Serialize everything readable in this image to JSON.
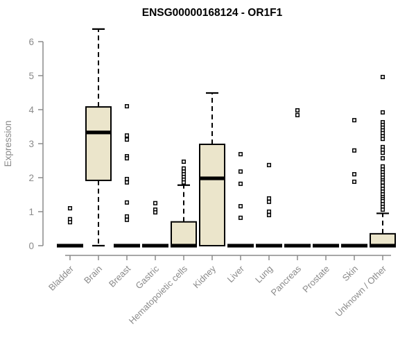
{
  "colors": {
    "box_fill": "#EBE5CB",
    "box_stroke": "#000000",
    "median": "#000000",
    "whisker": "#000000",
    "outlier_stroke": "#000000",
    "axis": "#8a8a8a",
    "tick_label": "#8a8a8a",
    "title": "#000000",
    "background": "#FFFFFF"
  },
  "chart_data": {
    "type": "boxplot",
    "title": "ENSG00000168124 - OR1F1",
    "ylabel": "Expression",
    "xlabel": "",
    "ylim": [
      0,
      6
    ],
    "yticks": [
      0,
      1,
      2,
      3,
      4,
      5,
      6
    ],
    "grid": false,
    "legend": "none",
    "categories": [
      "Bladder",
      "Brain",
      "Breast",
      "Gastric",
      "Hematopoietic cells",
      "Kidney",
      "Liver",
      "Lung",
      "Pancreas",
      "Prostate",
      "Skin",
      "Unknown / Other"
    ],
    "boxes": [
      {
        "category": "Bladder",
        "q1": 0,
        "median": 0,
        "q3": 0,
        "whisker_low": 0,
        "whisker_high": 0,
        "outliers": [
          1.1,
          0.78,
          0.69
        ]
      },
      {
        "category": "Brain",
        "q1": 1.92,
        "median": 3.33,
        "q3": 4.08,
        "whisker_low": 0,
        "whisker_high": 6.37,
        "outliers": []
      },
      {
        "category": "Breast",
        "q1": 0,
        "median": 0,
        "q3": 0,
        "whisker_low": 0,
        "whisker_high": 0,
        "outliers": [
          4.1,
          3.24,
          3.12,
          2.63,
          2.57,
          1.96,
          1.86,
          1.27,
          0.86,
          0.76
        ]
      },
      {
        "category": "Gastric",
        "q1": 0,
        "median": 0,
        "q3": 0,
        "whisker_low": 0,
        "whisker_high": 0,
        "outliers": [
          1.25,
          1.06,
          0.98
        ]
      },
      {
        "category": "Hematopoietic cells",
        "q1": 0,
        "median": 0,
        "q3": 0.7,
        "whisker_low": 0,
        "whisker_high": 1.78,
        "outliers": [
          2.47,
          2.27,
          2.18,
          2.1,
          2.02,
          1.94,
          1.86
        ]
      },
      {
        "category": "Kidney",
        "q1": 0,
        "median": 1.98,
        "q3": 2.98,
        "whisker_low": 0,
        "whisker_high": 4.49,
        "outliers": []
      },
      {
        "category": "Liver",
        "q1": 0,
        "median": 0,
        "q3": 0,
        "whisker_low": 0,
        "whisker_high": 0,
        "outliers": [
          2.69,
          2.18,
          1.82,
          1.16,
          0.82
        ]
      },
      {
        "category": "Lung",
        "q1": 0,
        "median": 0,
        "q3": 0,
        "whisker_low": 0,
        "whisker_high": 0,
        "outliers": [
          2.37,
          1.39,
          1.29,
          1.0,
          0.9
        ]
      },
      {
        "category": "Pancreas",
        "q1": 0,
        "median": 0,
        "q3": 0,
        "whisker_low": 0,
        "whisker_high": 0,
        "outliers": [
          3.98,
          3.84
        ]
      },
      {
        "category": "Prostate",
        "q1": 0,
        "median": 0,
        "q3": 0,
        "whisker_low": 0,
        "whisker_high": 0,
        "outliers": []
      },
      {
        "category": "Skin",
        "q1": 0,
        "median": 0,
        "q3": 0,
        "whisker_low": 0,
        "whisker_high": 0,
        "outliers": [
          3.69,
          2.8,
          2.1,
          1.88
        ]
      },
      {
        "category": "Unknown / Other",
        "q1": 0,
        "median": 0,
        "q3": 0.35,
        "whisker_low": 0,
        "whisker_high": 0.95,
        "outliers": [
          4.96,
          3.92,
          3.63,
          3.55,
          3.47,
          3.39,
          3.31,
          3.22,
          3.14,
          2.9,
          2.82,
          2.73,
          2.57,
          2.33,
          2.24,
          2.16,
          2.08,
          2.0,
          1.92,
          1.86,
          1.76,
          1.67,
          1.59,
          1.51,
          1.43,
          1.37,
          1.31,
          1.22,
          1.14,
          1.06
        ]
      }
    ]
  }
}
